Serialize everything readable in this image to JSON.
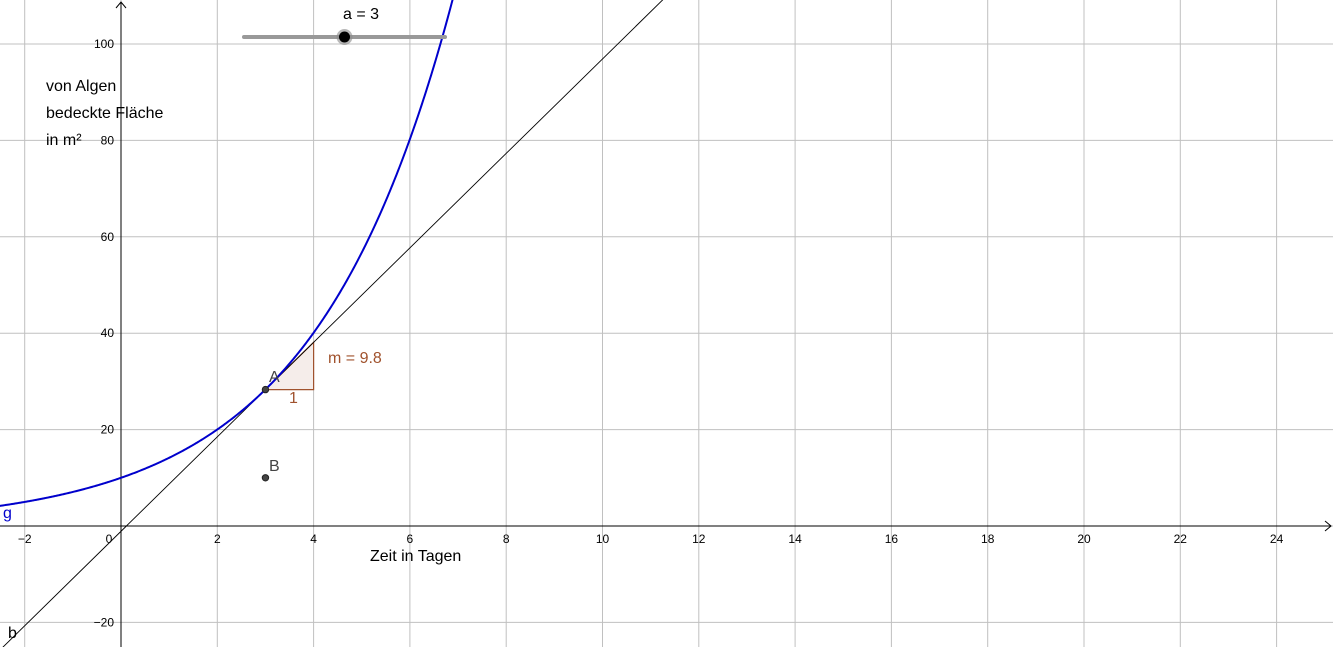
{
  "slider": {
    "name": "a",
    "value": 3,
    "caption": "a = 3",
    "min": -1,
    "max": 7
  },
  "axes": {
    "x_label": "Zeit in Tagen",
    "y_label_lines": [
      "von Algen",
      "bedeckte Fläche",
      "in m²"
    ],
    "x_ticks": [
      "−2",
      "0",
      "2",
      "4",
      "6",
      "8",
      "10",
      "12",
      "14",
      "16",
      "18",
      "20",
      "22",
      "24"
    ],
    "y_ticks": [
      "100",
      "80",
      "60",
      "40",
      "20",
      "−20"
    ]
  },
  "objects": {
    "curve_name": "g",
    "tangent_name": "b",
    "point_a": "A",
    "point_b": "B",
    "slope_text": "m = 9.8",
    "slope_run": "1"
  },
  "colors": {
    "curve": "#0000cc",
    "tangent": "#000000",
    "slope_triangle": "#a0522d",
    "grid": "#c0c0c0",
    "point": "#444444",
    "slider_track": "#999999"
  },
  "chart_data": {
    "type": "line",
    "x_range": [
      -2.5,
      25
    ],
    "y_range": [
      -24,
      109
    ],
    "grid": true,
    "function_g": {
      "formula": "10 * 1.415^x",
      "base": 10,
      "growth": 1.415
    },
    "tangent_b": {
      "slope": 9.8,
      "point": [
        3,
        28.3
      ]
    },
    "point_A": [
      3,
      28.3
    ],
    "point_B": [
      3,
      10
    ],
    "slope_triangle": {
      "from": [
        3,
        28.3
      ],
      "run": 1,
      "rise": 9.8
    }
  }
}
